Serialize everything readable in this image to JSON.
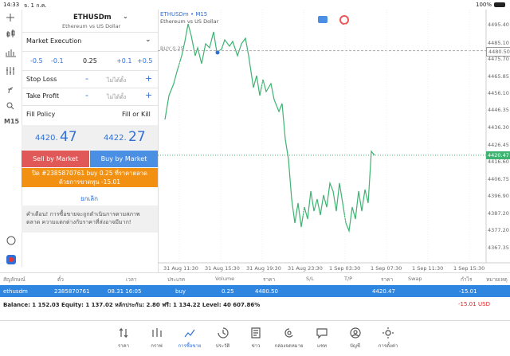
{
  "status_bar": {
    "time": "14:33",
    "date": "จ. 1 ก.ค.",
    "battery": "100%"
  },
  "sidebar": {
    "timeframe": "M15"
  },
  "order_panel": {
    "symbol": "ETHUSDm",
    "description": "Ethereum vs US Dollar",
    "execution": "Market Execution",
    "volume_steps": [
      "-0.5",
      "-0.1",
      "+0.1",
      "+0.5"
    ],
    "volume": "0.25",
    "stop_loss": {
      "label": "Stop Loss",
      "minus": "-",
      "value": "ไม่ได้ตั้ง",
      "plus": "+"
    },
    "take_profit": {
      "label": "Take Profit",
      "minus": "-",
      "value": "ไม่ได้ตั้ง",
      "plus": "+"
    },
    "fill_policy": {
      "label": "Fill Policy",
      "value": "Fill or Kill"
    },
    "bid": {
      "prefix": "4420.",
      "pips": "47"
    },
    "ask": {
      "prefix": "4422.",
      "pips": "27"
    },
    "sell_button": "Sell by Market",
    "buy_button": "Buy by Market",
    "notice": "ปิด #2385870761 buy 0.25 ที่ราคาตลาดด้วยการขาดทุน -15.01",
    "cancel": "ยกเลิก",
    "warning": "คำเตือน! การซื้อขายจะถูกดำเนินการตามสภาพตลาด ความแตกต่างกับราคาที่ส่งอาจมีมาก!"
  },
  "chart": {
    "title": "ETHUSDm • M15",
    "description": "Ethereum vs US Dollar",
    "order_line": "BUY 0.25",
    "price_axis": [
      "4495.40",
      "4485.10",
      "4475.70",
      "4465.85",
      "4456.10",
      "4446.35",
      "4436.30",
      "4426.45",
      "4416.60",
      "4406.75",
      "4396.90",
      "4387.20",
      "4377.20",
      "4367.35"
    ],
    "open_price": "4480.50",
    "current_price": "4420.47",
    "time_axis": [
      "31 Aug 11:30",
      "31 Aug 15:30",
      "31 Aug 19:30",
      "31 Aug 23:30",
      "1 Sep 03:30",
      "1 Sep 07:30",
      "1 Sep 11:30",
      "1 Sep 15:30"
    ]
  },
  "table": {
    "headers": [
      "สัญลักษณ์",
      "ตั๋ว",
      "เวลา",
      "ประเภท",
      "Volume",
      "ราคา",
      "S/L",
      "T/P",
      "ราคา",
      "Swap",
      "กำไร",
      "หมายเหตุ"
    ],
    "rows": [
      {
        "symbol": "ethusdm",
        "ticket": "2385870761",
        "time": "08.31 16:05",
        "type": "buy",
        "volume": "0.25",
        "open_price": "4480.50",
        "current_price": "4420.47",
        "profit": "-15.01"
      }
    ],
    "summary": "Balance: 1 152.03 Equity: 1 137.02 หลักประกัน: 2.80 ฟรี: 1 134.22 Level: 40 607.86%",
    "total_profit": "-15.01",
    "currency": "USD"
  },
  "tabs": [
    "ราคา",
    "กราฟ",
    "การซื้อขาย",
    "ประวัติ",
    "ข่าว",
    "กล่องจดหมาย",
    "แชท",
    "บัญชี",
    "การตั้งค่า"
  ]
}
